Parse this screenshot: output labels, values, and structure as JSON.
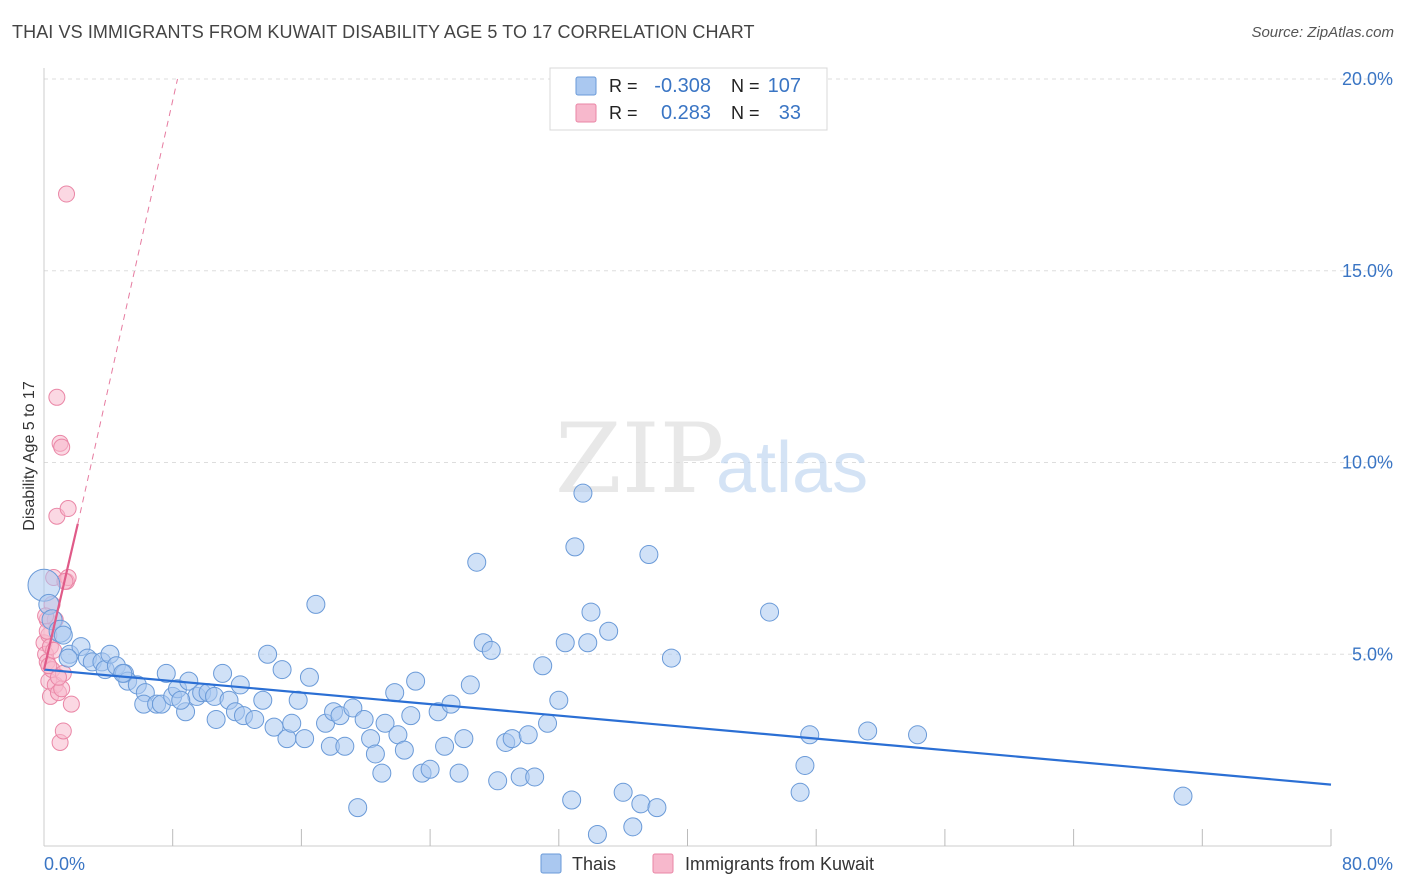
{
  "title": "THAI VS IMMIGRANTS FROM KUWAIT DISABILITY AGE 5 TO 17 CORRELATION CHART",
  "source": "Source: ZipAtlas.com",
  "watermark": {
    "zip": "ZIP",
    "atlas": "atlas"
  },
  "colors": {
    "thais_fill": "#aac8f0",
    "thais_stroke": "#6a9ad8",
    "thais_line": "#2b6fd4",
    "kuwait_fill": "#f7b8cc",
    "kuwait_stroke": "#ea86a6",
    "kuwait_line": "#e05a88",
    "axis_text": "#3a75c4",
    "grid": "#dddddd"
  },
  "legend_stats": [
    {
      "series": "thais",
      "r_label": "R = ",
      "r_value": "-0.308",
      "n_label": "N = ",
      "n_value": "107"
    },
    {
      "series": "kuwait",
      "r_label": "R = ",
      "r_value": "0.283",
      "n_label": "N = ",
      "n_value": "33"
    }
  ],
  "chart_data": {
    "type": "scatter",
    "title": "THAI VS IMMIGRANTS FROM KUWAIT DISABILITY AGE 5 TO 17 CORRELATION CHART",
    "xlabel": "",
    "ylabel": "Disability Age 5 to 17",
    "xlim": [
      0,
      80
    ],
    "ylim": [
      0,
      20
    ],
    "x_tick_labels": [
      "0.0%",
      "80.0%"
    ],
    "y_ticks": [
      5,
      10,
      15,
      20
    ],
    "y_tick_labels": [
      "5.0%",
      "10.0%",
      "15.0%",
      "20.0%"
    ],
    "legend": [
      "Thais",
      "Immigrants from Kuwait"
    ],
    "series": [
      {
        "name": "Thais",
        "key": "thais",
        "r": -0.308,
        "n": 107,
        "trend": {
          "x": [
            0,
            80
          ],
          "y": [
            4.6,
            1.6
          ]
        },
        "points": [
          [
            0.0,
            6.8,
            16
          ],
          [
            0.3,
            6.3,
            10
          ],
          [
            0.5,
            5.9,
            10
          ],
          [
            1.0,
            5.6,
            11
          ],
          [
            1.2,
            5.5,
            9
          ],
          [
            1.6,
            5.0,
            9
          ],
          [
            2.3,
            5.2,
            9
          ],
          [
            2.7,
            4.9,
            9
          ],
          [
            3.0,
            4.8,
            9
          ],
          [
            3.6,
            4.8,
            9
          ],
          [
            3.8,
            4.6,
            9
          ],
          [
            4.1,
            5.0,
            9
          ],
          [
            4.5,
            4.7,
            9
          ],
          [
            5.0,
            4.5,
            9
          ],
          [
            5.2,
            4.3,
            9
          ],
          [
            5.8,
            4.2,
            9
          ],
          [
            6.3,
            4.0,
            9
          ],
          [
            6.2,
            3.7,
            9
          ],
          [
            7.0,
            3.7,
            9
          ],
          [
            7.3,
            3.7,
            9
          ],
          [
            7.6,
            4.5,
            9
          ],
          [
            8.0,
            3.9,
            9
          ],
          [
            8.3,
            4.1,
            9
          ],
          [
            8.8,
            3.5,
            9
          ],
          [
            9.0,
            4.3,
            9
          ],
          [
            9.5,
            3.9,
            9
          ],
          [
            9.8,
            4.0,
            9
          ],
          [
            10.2,
            4.0,
            9
          ],
          [
            10.6,
            3.9,
            9
          ],
          [
            10.7,
            3.3,
            9
          ],
          [
            11.1,
            4.5,
            9
          ],
          [
            11.5,
            3.8,
            9
          ],
          [
            11.9,
            3.5,
            9
          ],
          [
            12.2,
            4.2,
            9
          ],
          [
            12.4,
            3.4,
            9
          ],
          [
            13.1,
            3.3,
            9
          ],
          [
            13.6,
            3.8,
            9
          ],
          [
            13.9,
            5.0,
            9
          ],
          [
            14.3,
            3.1,
            9
          ],
          [
            14.8,
            4.6,
            9
          ],
          [
            15.1,
            2.8,
            9
          ],
          [
            15.4,
            3.2,
            9
          ],
          [
            15.8,
            3.8,
            9
          ],
          [
            16.2,
            2.8,
            9
          ],
          [
            16.5,
            4.4,
            9
          ],
          [
            16.9,
            6.3,
            9
          ],
          [
            17.5,
            3.2,
            9
          ],
          [
            17.8,
            2.6,
            9
          ],
          [
            18.0,
            3.5,
            9
          ],
          [
            18.4,
            3.4,
            9
          ],
          [
            18.7,
            2.6,
            9
          ],
          [
            19.2,
            3.6,
            9
          ],
          [
            19.5,
            1.0,
            9
          ],
          [
            19.9,
            3.3,
            9
          ],
          [
            20.3,
            2.8,
            9
          ],
          [
            20.6,
            2.4,
            9
          ],
          [
            21.0,
            1.9,
            9
          ],
          [
            21.2,
            3.2,
            9
          ],
          [
            21.8,
            4.0,
            9
          ],
          [
            22.0,
            2.9,
            9
          ],
          [
            22.4,
            2.5,
            9
          ],
          [
            22.8,
            3.4,
            9
          ],
          [
            23.1,
            4.3,
            9
          ],
          [
            23.5,
            1.9,
            9
          ],
          [
            24.0,
            2.0,
            9
          ],
          [
            24.5,
            3.5,
            9
          ],
          [
            24.9,
            2.6,
            9
          ],
          [
            25.3,
            3.7,
            9
          ],
          [
            25.8,
            1.9,
            9
          ],
          [
            26.1,
            2.8,
            9
          ],
          [
            26.5,
            4.2,
            9
          ],
          [
            26.9,
            7.4,
            9
          ],
          [
            27.3,
            5.3,
            9
          ],
          [
            27.8,
            5.1,
            9
          ],
          [
            28.2,
            1.7,
            9
          ],
          [
            28.7,
            2.7,
            9
          ],
          [
            29.1,
            2.8,
            9
          ],
          [
            29.6,
            1.8,
            9
          ],
          [
            30.1,
            2.9,
            9
          ],
          [
            30.5,
            1.8,
            9
          ],
          [
            31.0,
            4.7,
            9
          ],
          [
            31.3,
            3.2,
            9
          ],
          [
            32.0,
            3.8,
            9
          ],
          [
            32.4,
            5.3,
            9
          ],
          [
            32.8,
            1.2,
            9
          ],
          [
            33.0,
            7.8,
            9
          ],
          [
            33.5,
            9.2,
            9
          ],
          [
            33.8,
            5.3,
            9
          ],
          [
            34.0,
            6.1,
            9
          ],
          [
            35.1,
            5.6,
            9
          ],
          [
            34.4,
            0.3,
            9
          ],
          [
            36.0,
            1.4,
            9
          ],
          [
            36.6,
            0.5,
            9
          ],
          [
            37.1,
            1.1,
            9
          ],
          [
            37.6,
            7.6,
            9
          ],
          [
            38.1,
            1.0,
            9
          ],
          [
            39.0,
            4.9,
            9
          ],
          [
            45.1,
            6.1,
            9
          ],
          [
            47.0,
            1.4,
            9
          ],
          [
            47.3,
            2.1,
            9
          ],
          [
            47.6,
            2.9,
            9
          ],
          [
            51.2,
            3.0,
            9
          ],
          [
            54.3,
            2.9,
            9
          ],
          [
            70.8,
            1.3,
            9
          ],
          [
            1.5,
            4.9,
            9
          ],
          [
            4.9,
            4.5,
            9
          ],
          [
            8.5,
            3.8,
            9
          ]
        ]
      },
      {
        "name": "Immigrants from Kuwait",
        "key": "kuwait",
        "r": 0.283,
        "n": 33,
        "trend": {
          "x": [
            0,
            2.1
          ],
          "y": [
            4.6,
            8.4
          ],
          "dashed_x": [
            2.1,
            8.3
          ],
          "dashed_y": [
            8.4,
            20.0
          ]
        },
        "points": [
          [
            0.0,
            5.3,
            8
          ],
          [
            0.1,
            5.0,
            8
          ],
          [
            0.2,
            4.8,
            8
          ],
          [
            0.2,
            5.9,
            8
          ],
          [
            0.3,
            5.5,
            8
          ],
          [
            0.3,
            4.3,
            8
          ],
          [
            0.4,
            3.9,
            8
          ],
          [
            0.4,
            5.2,
            8
          ],
          [
            0.5,
            6.3,
            8
          ],
          [
            0.5,
            4.6,
            8
          ],
          [
            0.6,
            7.0,
            8
          ],
          [
            0.7,
            5.9,
            8
          ],
          [
            0.7,
            4.2,
            8
          ],
          [
            0.8,
            11.7,
            8
          ],
          [
            0.8,
            8.6,
            8
          ],
          [
            0.9,
            4.0,
            8
          ],
          [
            1.0,
            2.7,
            8
          ],
          [
            1.0,
            10.5,
            8
          ],
          [
            1.1,
            10.4,
            8
          ],
          [
            1.1,
            4.1,
            8
          ],
          [
            1.2,
            4.5,
            8
          ],
          [
            1.2,
            3.0,
            8
          ],
          [
            1.4,
            6.9,
            8
          ],
          [
            1.5,
            8.8,
            8
          ],
          [
            1.5,
            7.0,
            8
          ],
          [
            1.7,
            3.7,
            8
          ],
          [
            1.4,
            17.0,
            8
          ],
          [
            0.2,
            5.6,
            8
          ],
          [
            0.6,
            5.1,
            8
          ],
          [
            0.3,
            4.7,
            8
          ],
          [
            0.9,
            4.4,
            8
          ],
          [
            0.1,
            6.0,
            8
          ],
          [
            1.3,
            6.9,
            8
          ]
        ]
      }
    ]
  }
}
